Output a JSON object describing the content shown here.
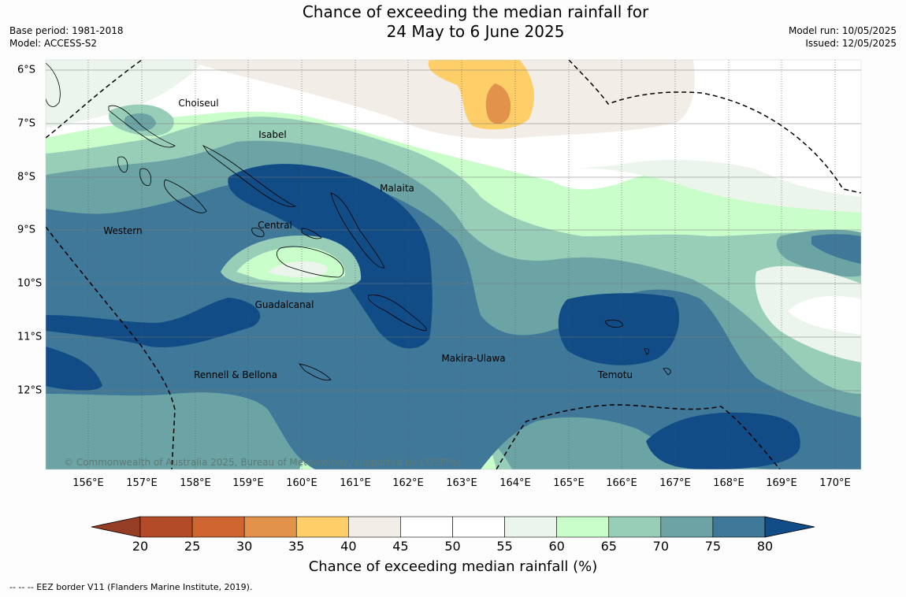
{
  "title": {
    "line1": "Chance of exceeding the median rainfall for",
    "line2": "24 May to 6 June 2025"
  },
  "meta_left": {
    "base_period": "Base period: 1981-2018",
    "model": "Model: ACCESS-S2"
  },
  "meta_right": {
    "model_run": "Model run: 10/05/2025",
    "issued": "Issued: 12/05/2025"
  },
  "copyright": "© Commonwealth of Australia 2025, Bureau of Meteorology, supported by COSPPac",
  "longitude_labels": [
    "156°E",
    "157°E",
    "158°E",
    "159°E",
    "160°E",
    "161°E",
    "162°E",
    "163°E",
    "164°E",
    "165°E",
    "166°E",
    "167°E",
    "168°E",
    "169°E",
    "170°E"
  ],
  "latitude_labels": [
    "6°S",
    "7°S",
    "8°S",
    "9°S",
    "10°S",
    "11°S",
    "12°S"
  ],
  "regions": [
    {
      "name": "Choiseul"
    },
    {
      "name": "Isabel"
    },
    {
      "name": "Malaita"
    },
    {
      "name": "Western"
    },
    {
      "name": "Central"
    },
    {
      "name": "Guadalcanal"
    },
    {
      "name": "Makira-Ulawa"
    },
    {
      "name": "Rennell & Bellona"
    },
    {
      "name": "Temotu"
    }
  ],
  "colorbar": {
    "label": "Chance of exceeding median rainfall (%)",
    "ticks": [
      "20",
      "25",
      "30",
      "35",
      "40",
      "45",
      "50",
      "55",
      "60",
      "65",
      "70",
      "75",
      "80"
    ],
    "colors": [
      "#b34a28",
      "#cf6530",
      "#e3924c",
      "#fecf69",
      "#f2ede7",
      "#ffffff",
      "#ffffff",
      "#ebf5eb",
      "#c9fdc9",
      "#98cdb8",
      "#6ca4a5",
      "#3f7898"
    ],
    "under_color": "#963d25",
    "over_color": "#114c86"
  },
  "footnote": "--  --  -- EEZ border V11 (Flanders Marine Institute, 2019)."
}
